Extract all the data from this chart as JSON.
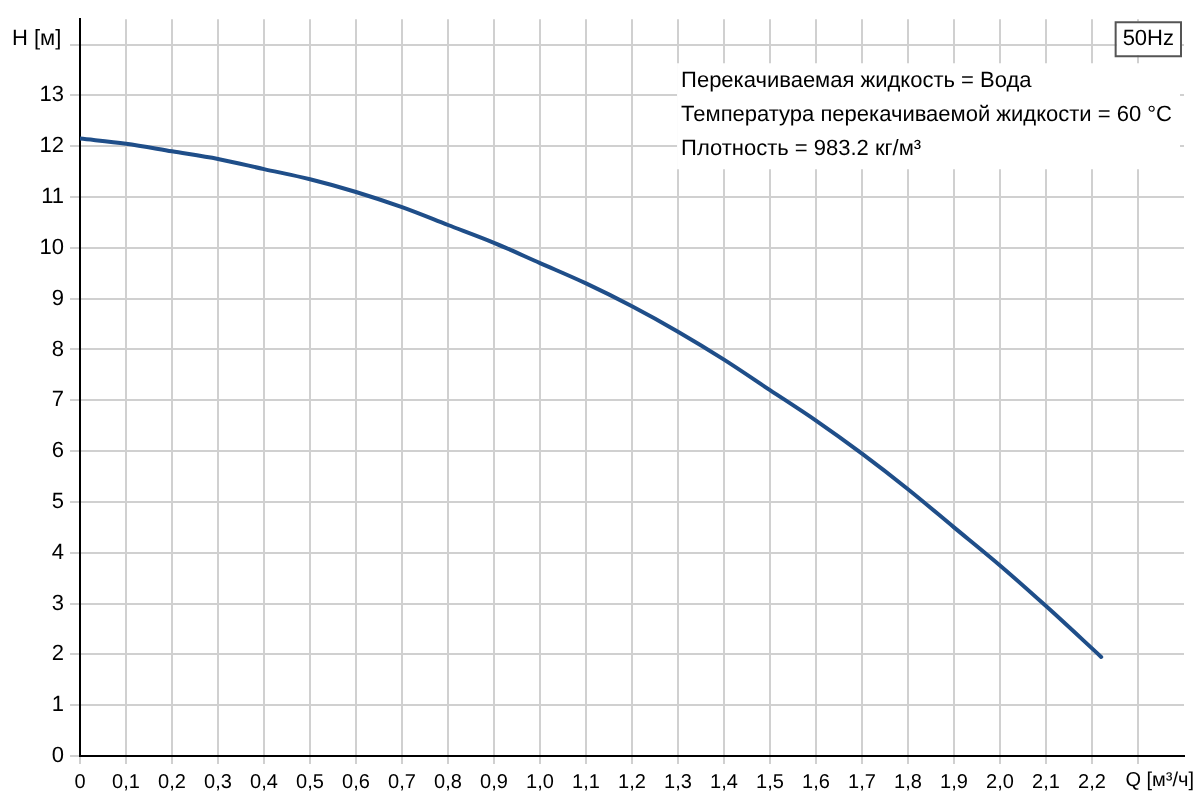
{
  "chart_data": {
    "type": "line",
    "xlabel": "Q [м³/ч]",
    "ylabel": "H [м]",
    "x": [
      0,
      0.1,
      0.2,
      0.3,
      0.4,
      0.5,
      0.6,
      0.7,
      0.8,
      0.9,
      1.0,
      1.1,
      1.2,
      1.3,
      1.4,
      1.5,
      1.6,
      1.7,
      1.8,
      1.9,
      2.0,
      2.1,
      2.22
    ],
    "series": [
      {
        "color": "#1f4e89",
        "values": [
          12.15,
          12.05,
          11.9,
          11.75,
          11.55,
          11.35,
          11.1,
          10.8,
          10.45,
          10.1,
          9.7,
          9.3,
          8.85,
          8.35,
          7.8,
          7.2,
          6.6,
          5.95,
          5.25,
          4.5,
          3.75,
          2.95,
          1.95
        ]
      }
    ],
    "xlim": [
      0,
      2.4
    ],
    "xticks": [
      0,
      {
        "value": 0.1,
        "label": "0,1"
      },
      {
        "value": 0.2,
        "label": "0,2"
      },
      {
        "value": 0.3,
        "label": "0,3"
      },
      {
        "value": 0.4,
        "label": "0,4"
      },
      {
        "value": 0.5,
        "label": "0,5"
      },
      {
        "value": 0.6,
        "label": "0,6"
      },
      {
        "value": 0.7,
        "label": "0,7"
      },
      {
        "value": 0.8,
        "label": "0,8"
      },
      {
        "value": 0.9,
        "label": "0,9"
      },
      {
        "value": 1.0,
        "label": "1,0"
      },
      {
        "value": 1.1,
        "label": "1,1"
      },
      {
        "value": 1.2,
        "label": "1,2"
      },
      {
        "value": 1.3,
        "label": "1,3"
      },
      {
        "value": 1.4,
        "label": "1,4"
      },
      {
        "value": 1.5,
        "label": "1,5"
      },
      {
        "value": 1.6,
        "label": "1,6"
      },
      {
        "value": 1.7,
        "label": "1,7"
      },
      {
        "value": 1.8,
        "label": "1,8"
      },
      {
        "value": 1.9,
        "label": "1,9"
      },
      {
        "value": 2.0,
        "label": "2,0"
      },
      {
        "value": 2.1,
        "label": "2,1"
      },
      {
        "value": 2.2,
        "label": "2,2"
      },
      {
        "value": 2.3,
        "label": null
      }
    ],
    "ylim": [
      0,
      14.5
    ],
    "yticks": [
      0,
      1,
      2,
      3,
      4,
      5,
      6,
      7,
      8,
      9,
      10,
      11,
      12,
      13,
      {
        "value": 14,
        "label": null
      }
    ],
    "grid": true,
    "marker": "none",
    "line_style": "solid",
    "legend": false,
    "annotations": [
      "50Hz",
      "Перекачиваемая жидкость = Вода",
      "Температура перекачиваемой жидкости = 60 °C",
      "Плотность = 983.2 кг/м³"
    ]
  }
}
